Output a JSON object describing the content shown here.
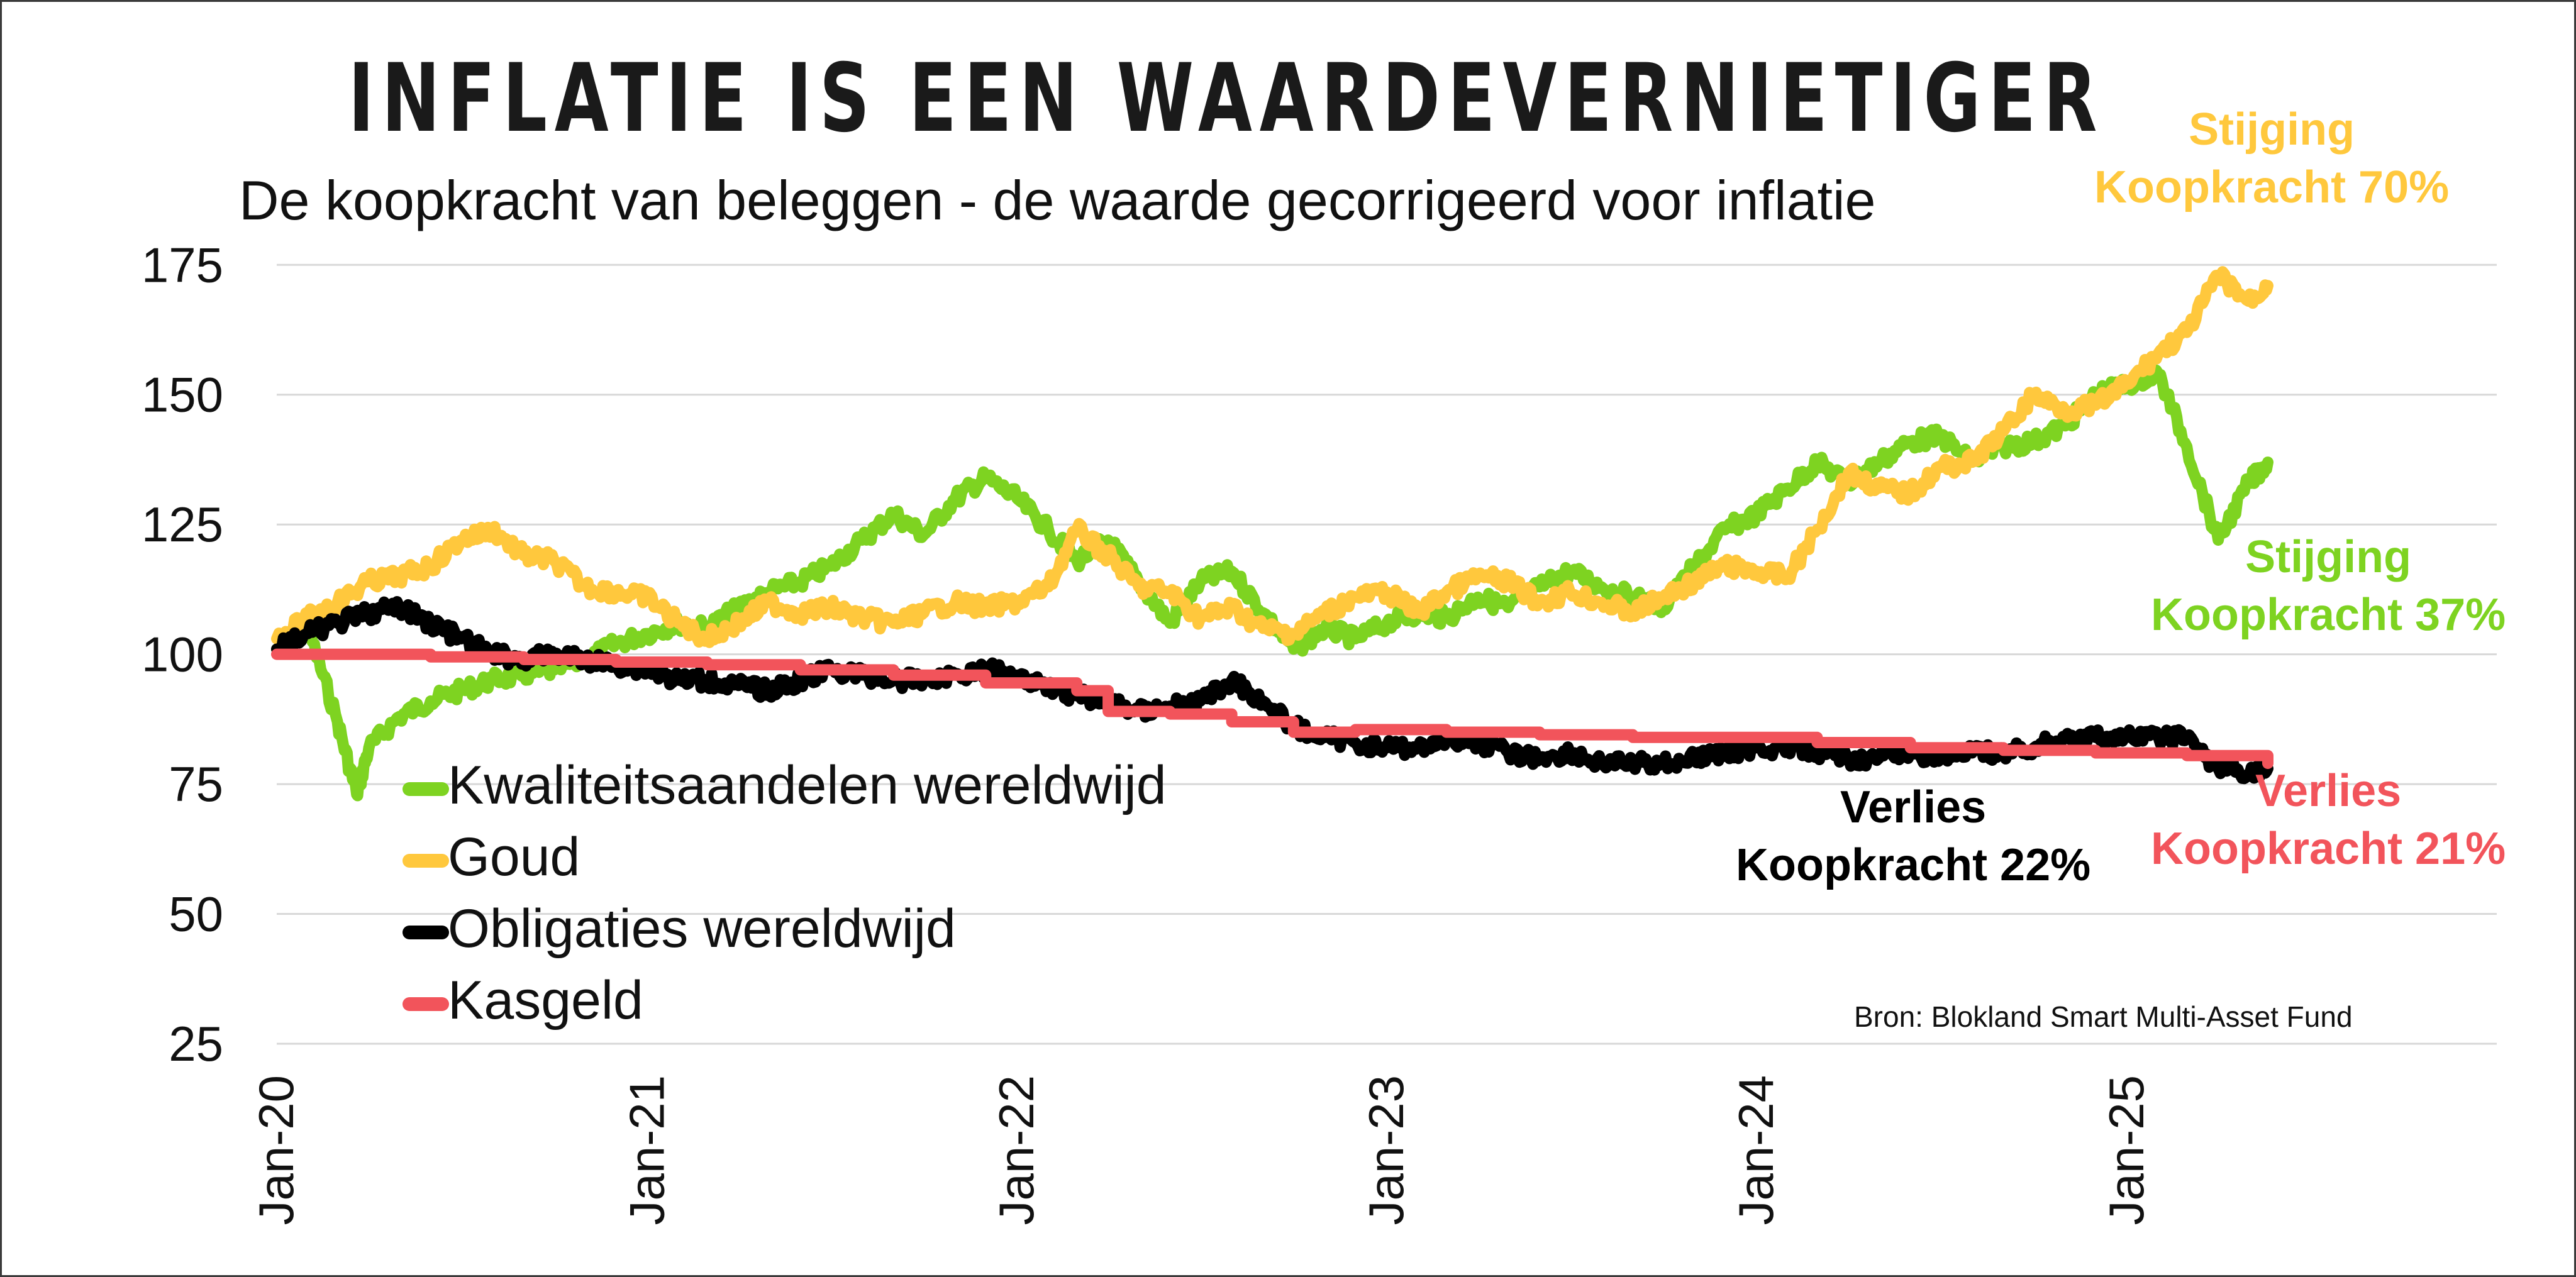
{
  "title": "INFLATIE IS EEN WAARDEVERNIETIGER",
  "subtitle": "De koopkracht van beleggen - de waarde gecorrigeerd voor inflatie",
  "source": "Bron: Blokland Smart Multi-Asset Fund",
  "annotations": {
    "goud_line1": "Stijging",
    "goud_line2": "Koopkracht 70%",
    "kwaliteit_line1": "Stijging",
    "kwaliteit_line2": "Koopkracht 37%",
    "obligaties_line1": "Verlies",
    "obligaties_line2": "Koopkracht 22%",
    "kasgeld_line1": "Verlies",
    "kasgeld_line2": "Koopkracht 21%"
  },
  "chart_data": {
    "type": "line",
    "title": "",
    "xlabel": "",
    "ylabel": "",
    "ylim": [
      25,
      180
    ],
    "yticks": [
      25,
      50,
      75,
      100,
      125,
      150,
      175
    ],
    "grid": true,
    "legend_position": "bottom-left",
    "xtick_labels": [
      "Jan-20",
      "Jan-21",
      "Jan-22",
      "Jan-23",
      "Jan-24",
      "Jan-25"
    ],
    "xlim": [
      "2020-01",
      "2026-01"
    ],
    "series": [
      {
        "name": "Kwaliteitsaandelen wereldwijd",
        "color": "#7ed321",
        "points": [
          [
            "2020-01",
            101
          ],
          [
            "2020-02",
            105
          ],
          [
            "2020-03",
            87
          ],
          [
            "2020-03-20",
            73
          ],
          [
            "2020-04",
            82
          ],
          [
            "2020-05",
            88
          ],
          [
            "2020-06",
            91
          ],
          [
            "2020-07",
            93
          ],
          [
            "2020-08",
            95
          ],
          [
            "2020-09",
            96
          ],
          [
            "2020-10",
            97
          ],
          [
            "2020-11",
            99
          ],
          [
            "2020-12",
            102
          ],
          [
            "2021-01",
            104
          ],
          [
            "2021-02",
            106
          ],
          [
            "2021-03",
            105
          ],
          [
            "2021-04",
            109
          ],
          [
            "2021-05",
            112
          ],
          [
            "2021-06",
            114
          ],
          [
            "2021-07",
            117
          ],
          [
            "2021-08",
            122
          ],
          [
            "2021-09",
            127
          ],
          [
            "2021-10",
            123
          ],
          [
            "2021-11",
            130
          ],
          [
            "2021-12",
            134
          ],
          [
            "2022-01",
            130
          ],
          [
            "2022-02",
            124
          ],
          [
            "2022-03",
            118
          ],
          [
            "2022-04",
            122
          ],
          [
            "2022-05",
            114
          ],
          [
            "2022-06",
            106
          ],
          [
            "2022-07",
            114
          ],
          [
            "2022-08",
            116
          ],
          [
            "2022-09",
            108
          ],
          [
            "2022-10",
            101
          ],
          [
            "2022-11",
            105
          ],
          [
            "2022-12",
            103
          ],
          [
            "2023-01",
            106
          ],
          [
            "2023-02",
            108
          ],
          [
            "2023-03",
            107
          ],
          [
            "2023-04",
            111
          ],
          [
            "2023-05",
            109
          ],
          [
            "2023-06",
            113
          ],
          [
            "2023-07",
            116
          ],
          [
            "2023-08",
            113
          ],
          [
            "2023-09",
            111
          ],
          [
            "2023-10",
            109
          ],
          [
            "2023-11",
            117
          ],
          [
            "2023-12",
            124
          ],
          [
            "2024-01",
            127
          ],
          [
            "2024-02",
            132
          ],
          [
            "2024-03",
            137
          ],
          [
            "2024-04",
            133
          ],
          [
            "2024-05",
            137
          ],
          [
            "2024-06",
            141
          ],
          [
            "2024-07",
            142
          ],
          [
            "2024-08",
            137
          ],
          [
            "2024-09",
            140
          ],
          [
            "2024-10",
            141
          ],
          [
            "2024-11",
            144
          ],
          [
            "2024-12",
            150
          ],
          [
            "2025-01",
            152
          ],
          [
            "2025-02",
            154
          ],
          [
            "2025-03",
            140
          ],
          [
            "2025-04",
            122
          ],
          [
            "2025-05",
            133
          ],
          [
            "2025-05-20",
            137
          ]
        ]
      },
      {
        "name": "Goud",
        "color": "#ffc83d",
        "points": [
          [
            "2020-01",
            103
          ],
          [
            "2020-02",
            107
          ],
          [
            "2020-03",
            110
          ],
          [
            "2020-04",
            114
          ],
          [
            "2020-05",
            115
          ],
          [
            "2020-06",
            117
          ],
          [
            "2020-07",
            122
          ],
          [
            "2020-08",
            124
          ],
          [
            "2020-09",
            119
          ],
          [
            "2020-10",
            118
          ],
          [
            "2020-11",
            113
          ],
          [
            "2020-12",
            112
          ],
          [
            "2021-01",
            111
          ],
          [
            "2021-02",
            106
          ],
          [
            "2021-03",
            103
          ],
          [
            "2021-04",
            106
          ],
          [
            "2021-05",
            110
          ],
          [
            "2021-06",
            108
          ],
          [
            "2021-07",
            109
          ],
          [
            "2021-08",
            107
          ],
          [
            "2021-09",
            106
          ],
          [
            "2021-10",
            108
          ],
          [
            "2021-11",
            110
          ],
          [
            "2021-12",
            109
          ],
          [
            "2022-01",
            110
          ],
          [
            "2022-02",
            113
          ],
          [
            "2022-03",
            124
          ],
          [
            "2022-04",
            119
          ],
          [
            "2022-05",
            113
          ],
          [
            "2022-06",
            112
          ],
          [
            "2022-07",
            107
          ],
          [
            "2022-08",
            109
          ],
          [
            "2022-09",
            105
          ],
          [
            "2022-10",
            104
          ],
          [
            "2022-11",
            108
          ],
          [
            "2022-12",
            111
          ],
          [
            "2023-01",
            112
          ],
          [
            "2023-02",
            108
          ],
          [
            "2023-03",
            112
          ],
          [
            "2023-04",
            115
          ],
          [
            "2023-05",
            114
          ],
          [
            "2023-06",
            110
          ],
          [
            "2023-07",
            112
          ],
          [
            "2023-08",
            110
          ],
          [
            "2023-09",
            108
          ],
          [
            "2023-10",
            111
          ],
          [
            "2023-11",
            114
          ],
          [
            "2023-12",
            117
          ],
          [
            "2024-01",
            116
          ],
          [
            "2024-02",
            115
          ],
          [
            "2024-03",
            124
          ],
          [
            "2024-04",
            135
          ],
          [
            "2024-05",
            132
          ],
          [
            "2024-06",
            131
          ],
          [
            "2024-07",
            136
          ],
          [
            "2024-08",
            137
          ],
          [
            "2024-09",
            143
          ],
          [
            "2024-10",
            150
          ],
          [
            "2024-11",
            147
          ],
          [
            "2024-12",
            148
          ],
          [
            "2025-01",
            152
          ],
          [
            "2025-02",
            158
          ],
          [
            "2025-03",
            162
          ],
          [
            "2025-04",
            173
          ],
          [
            "2025-05",
            168
          ],
          [
            "2025-05-20",
            171
          ]
        ]
      },
      {
        "name": "Obligaties wereldwijd",
        "color": "#000000",
        "points": [
          [
            "2020-01",
            101
          ],
          [
            "2020-02",
            104
          ],
          [
            "2020-03",
            106
          ],
          [
            "2020-04",
            108
          ],
          [
            "2020-05",
            109
          ],
          [
            "2020-06",
            106
          ],
          [
            "2020-07",
            103
          ],
          [
            "2020-08",
            100
          ],
          [
            "2020-09",
            99
          ],
          [
            "2020-10",
            100
          ],
          [
            "2020-11",
            99
          ],
          [
            "2020-12",
            98
          ],
          [
            "2021-01",
            97
          ],
          [
            "2021-02",
            95
          ],
          [
            "2021-03",
            95
          ],
          [
            "2021-04",
            94
          ],
          [
            "2021-05",
            93
          ],
          [
            "2021-06",
            95
          ],
          [
            "2021-07",
            97
          ],
          [
            "2021-08",
            96
          ],
          [
            "2021-09",
            95
          ],
          [
            "2021-10",
            95
          ],
          [
            "2021-11",
            96
          ],
          [
            "2021-12",
            97
          ],
          [
            "2022-01",
            96
          ],
          [
            "2022-02",
            94
          ],
          [
            "2022-03",
            92
          ],
          [
            "2022-04",
            91
          ],
          [
            "2022-05",
            89
          ],
          [
            "2022-06",
            90
          ],
          [
            "2022-07",
            91
          ],
          [
            "2022-08",
            95
          ],
          [
            "2022-09",
            91
          ],
          [
            "2022-10",
            86
          ],
          [
            "2022-11",
            84
          ],
          [
            "2022-12",
            83
          ],
          [
            "2023-01",
            82
          ],
          [
            "2023-02",
            82
          ],
          [
            "2023-03",
            84
          ],
          [
            "2023-04",
            83
          ],
          [
            "2023-05",
            81
          ],
          [
            "2023-06",
            80
          ],
          [
            "2023-07",
            81
          ],
          [
            "2023-08",
            79
          ],
          [
            "2023-09",
            79
          ],
          [
            "2023-10",
            79
          ],
          [
            "2023-11",
            80
          ],
          [
            "2023-12",
            81
          ],
          [
            "2024-01",
            82
          ],
          [
            "2024-02",
            82
          ],
          [
            "2024-03",
            81
          ],
          [
            "2024-04",
            80
          ],
          [
            "2024-05",
            80
          ],
          [
            "2024-06",
            81
          ],
          [
            "2024-07",
            80
          ],
          [
            "2024-08",
            81
          ],
          [
            "2024-09",
            81
          ],
          [
            "2024-10",
            82
          ],
          [
            "2024-11",
            84
          ],
          [
            "2024-12",
            84
          ],
          [
            "2025-01",
            84
          ],
          [
            "2025-02",
            84
          ],
          [
            "2025-03",
            84
          ],
          [
            "2025-04",
            78
          ],
          [
            "2025-05",
            77
          ],
          [
            "2025-05-20",
            78
          ]
        ]
      },
      {
        "name": "Kasgeld",
        "color": "#f2545b",
        "points": [
          [
            "2020-01",
            100
          ],
          [
            "2020-03",
            100
          ],
          [
            "2020-06",
            99.5
          ],
          [
            "2020-09",
            99
          ],
          [
            "2020-12",
            98.5
          ],
          [
            "2021-03",
            98
          ],
          [
            "2021-06",
            97
          ],
          [
            "2021-09",
            96
          ],
          [
            "2021-12",
            94.5
          ],
          [
            "2022-03",
            93
          ],
          [
            "2022-04",
            89
          ],
          [
            "2022-06",
            88.5
          ],
          [
            "2022-08",
            87
          ],
          [
            "2022-10",
            85
          ],
          [
            "2022-12",
            85.5
          ],
          [
            "2023-01",
            85.5
          ],
          [
            "2023-03",
            85
          ],
          [
            "2023-06",
            84.5
          ],
          [
            "2023-09",
            84
          ],
          [
            "2023-12",
            84
          ],
          [
            "2024-03",
            83
          ],
          [
            "2024-06",
            82
          ],
          [
            "2024-09",
            81.5
          ],
          [
            "2024-12",
            81
          ],
          [
            "2025-03",
            80.5
          ],
          [
            "2025-05-20",
            79
          ]
        ]
      }
    ]
  }
}
